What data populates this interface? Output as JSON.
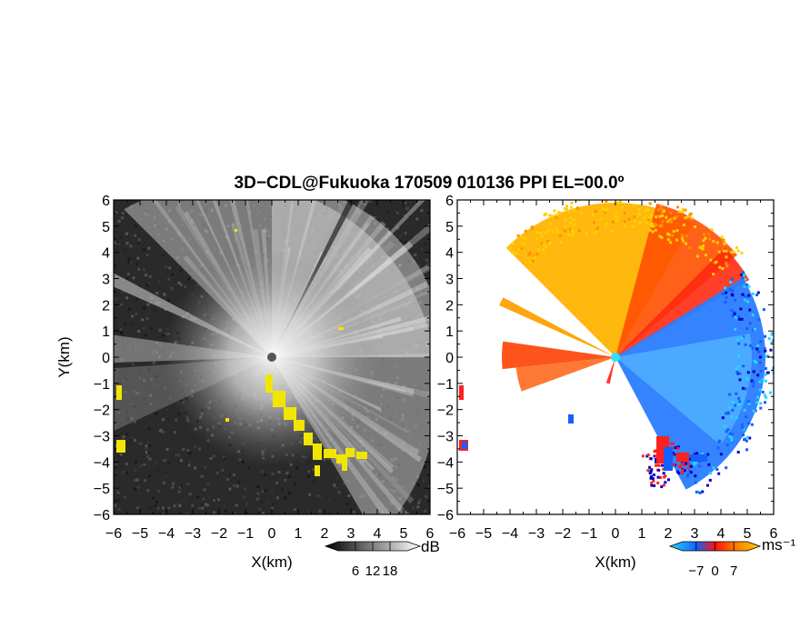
{
  "chart_data": {
    "title": "3D−CDL@Fukuoka 170509 010136 PPI EL=00.0º",
    "panels": [
      {
        "name": "left-panel",
        "type": "heatmap",
        "quantity": "signal intensity",
        "xlabel": "X(km)",
        "ylabel": "Y(km)",
        "xlim": [
          -6,
          6
        ],
        "ylim": [
          -6,
          6
        ],
        "xticks": [
          "−6",
          "−5",
          "−4",
          "−3",
          "−2",
          "−1",
          "0",
          "1",
          "2",
          "3",
          "4",
          "5",
          "6"
        ],
        "yticks": [
          "6",
          "5",
          "4",
          "3",
          "2",
          "1",
          "0",
          "−1",
          "−2",
          "−3",
          "−4",
          "−5",
          "−6"
        ],
        "colormap": "grayscale",
        "colorbar": {
          "unit": "dB",
          "ticks": [
            "6",
            "12",
            "18"
          ],
          "tick_values": [
            6,
            12,
            18
          ],
          "range": [
            0,
            24
          ],
          "colors": [
            "#000000",
            "#ffffff"
          ]
        },
        "highlight_color": "#f2e600"
      },
      {
        "name": "right-panel",
        "type": "heatmap",
        "quantity": "doppler velocity",
        "xlabel": "X(km)",
        "ylabel": "",
        "xlim": [
          -6,
          6
        ],
        "ylim": [
          -6,
          6
        ],
        "xticks": [
          "−6",
          "−5",
          "−4",
          "−3",
          "−2",
          "−1",
          "0",
          "1",
          "2",
          "3",
          "4",
          "5",
          "6"
        ],
        "yticks": [
          "6",
          "5",
          "4",
          "3",
          "2",
          "1",
          "0",
          "−1",
          "−2",
          "−3",
          "−4",
          "−5",
          "−6"
        ],
        "colormap": "cyan-blue-red-orange-yellow",
        "colorbar": {
          "unit": "ms⁻¹",
          "ticks": [
            "−7",
            "0",
            "7"
          ],
          "tick_values": [
            -7,
            0,
            7
          ],
          "range": [
            -12,
            12
          ],
          "colors": [
            "#20d8ff",
            "#1560ff",
            "#ff1010",
            "#ff7000",
            "#ffd000"
          ]
        }
      }
    ]
  }
}
